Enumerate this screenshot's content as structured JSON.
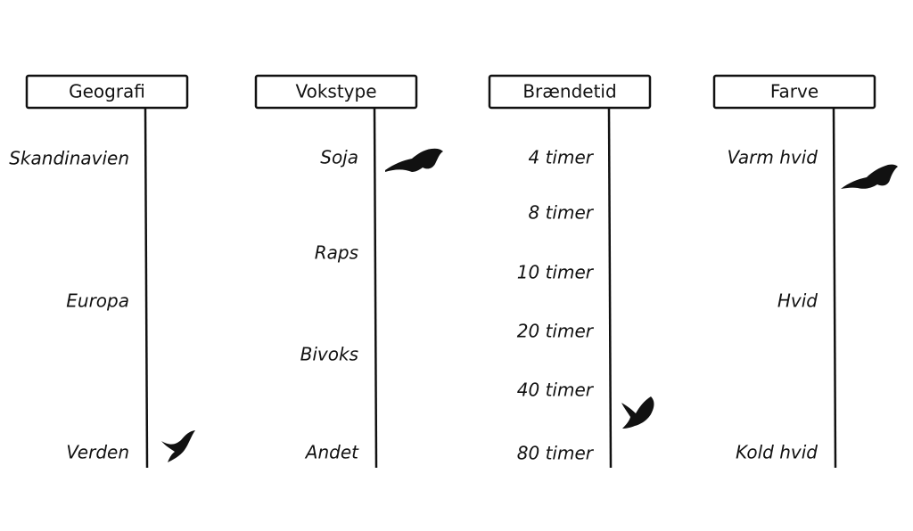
{
  "columns": [
    {
      "title": "Geografi",
      "items": [
        "Skandinavien",
        "Europa",
        "Verden"
      ]
    },
    {
      "title": "Vokstype",
      "items": [
        "Soja",
        "Raps",
        "Bivoks",
        "Andet"
      ]
    },
    {
      "title": "Brændetid",
      "items": [
        "4 timer",
        "8 timer",
        "10 timer",
        "20 timer",
        "40 timer",
        "80 timer"
      ]
    },
    {
      "title": "Farve",
      "items": [
        "Varm hvid",
        "Hvid",
        "Kold hvid"
      ]
    }
  ]
}
